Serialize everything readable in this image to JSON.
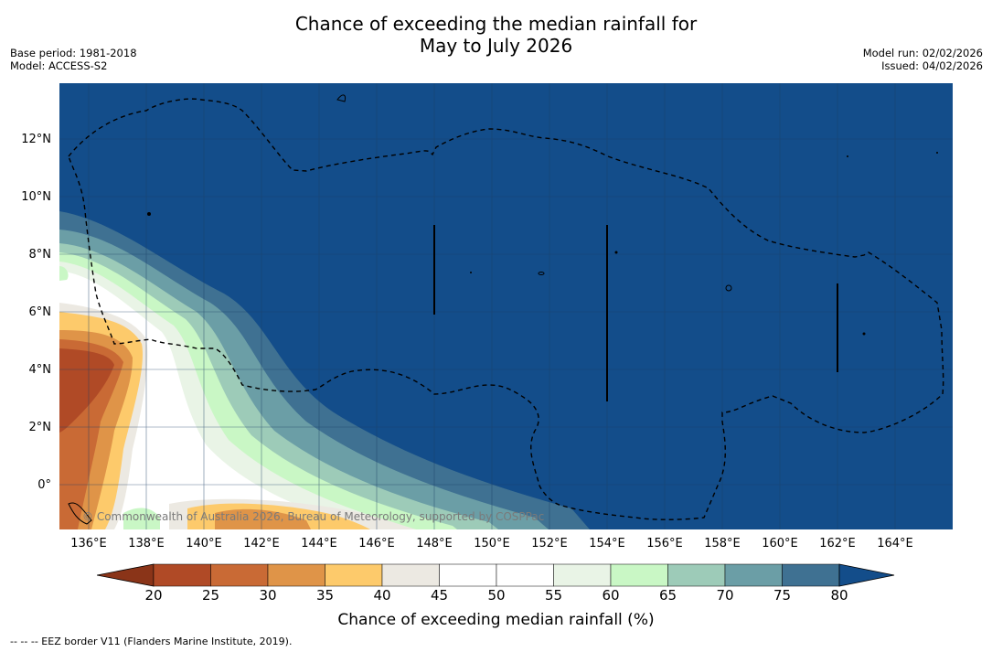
{
  "title_line1": "Chance of exceeding the median rainfall for",
  "title_line2": "May to July 2026",
  "base_period": "Base period: 1981-2018",
  "model": "Model: ACCESS-S2",
  "model_run": "Model run: 02/02/2026",
  "issued": "Issued: 04/02/2026",
  "credit": "© Commonwealth of Australia 2026, Bureau of Meteorology, supported by COSPPac",
  "lat_labels": [
    "12°N",
    "10°N",
    "8°N",
    "6°N",
    "4°N",
    "2°N",
    "0°"
  ],
  "lon_labels": [
    "136°E",
    "138°E",
    "140°E",
    "142°E",
    "144°E",
    "146°E",
    "148°E",
    "150°E",
    "152°E",
    "154°E",
    "156°E",
    "158°E",
    "160°E",
    "162°E",
    "164°E"
  ],
  "colorbar": {
    "ticks": [
      "20",
      "25",
      "30",
      "35",
      "40",
      "45",
      "50",
      "55",
      "60",
      "65",
      "70",
      "75",
      "80"
    ],
    "colors": [
      "#8a3418",
      "#b04a26",
      "#c96a35",
      "#df9448",
      "#fdca6b",
      "#ece9e2",
      "#ffffff",
      "#ffffff",
      "#e9f4e6",
      "#c9f7c5",
      "#9dcbb8",
      "#6b9ea6",
      "#3f7192",
      "#134d8a"
    ],
    "label": "Chance of exceeding median rainfall (%)"
  },
  "legend_note": "--  --  -- EEZ border V11 (Flanders Marine Institute, 2019)."
}
